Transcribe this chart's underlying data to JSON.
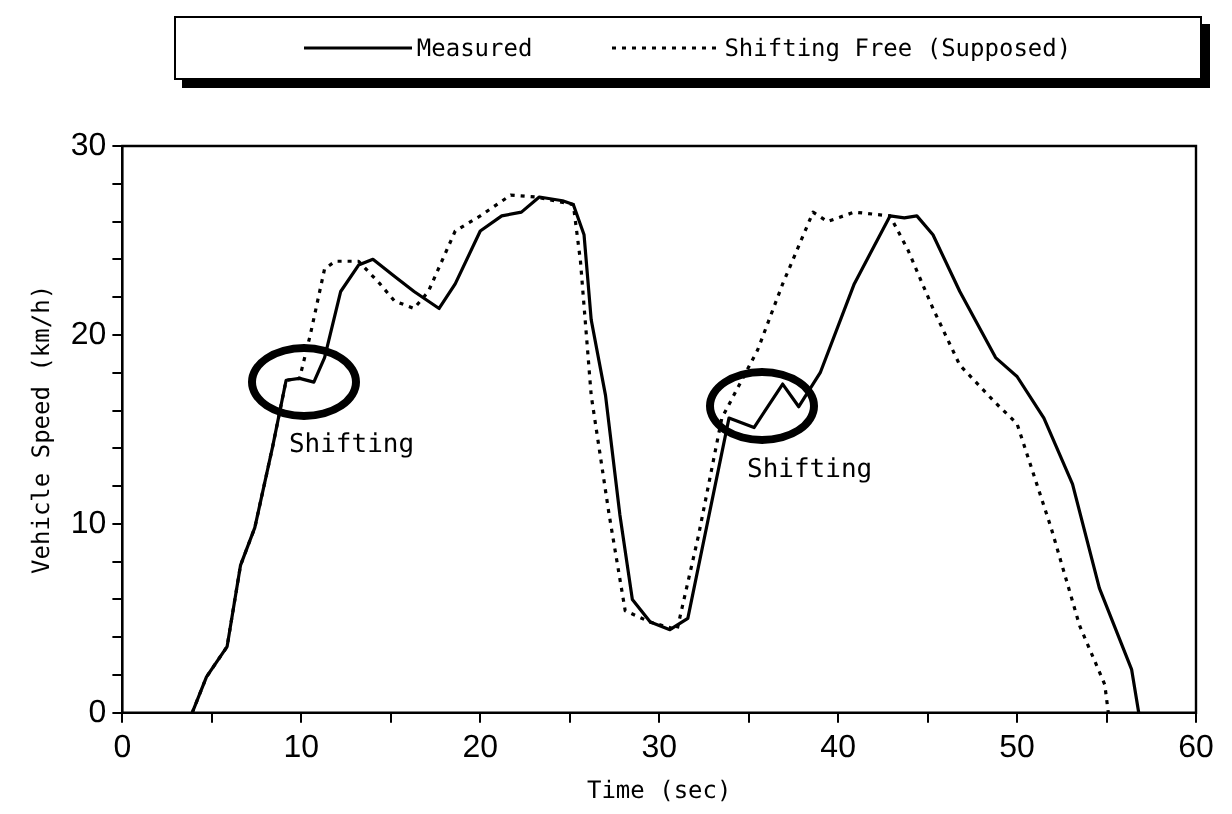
{
  "chart_data": {
    "type": "line",
    "xlabel": "Time (sec)",
    "ylabel": "Vehicle Speed (km/h)",
    "xlim": [
      0,
      60
    ],
    "xticks": [
      0,
      {
        "value": 5,
        "label": null
      },
      10,
      {
        "value": 15,
        "label": null
      },
      20,
      {
        "value": 25,
        "label": null
      },
      30,
      {
        "value": 35,
        "label": null
      },
      40,
      {
        "value": 45,
        "label": null
      },
      50,
      {
        "value": 55,
        "label": null
      },
      60
    ],
    "ylim": [
      0,
      30
    ],
    "yticks": [
      0,
      {
        "value": 2,
        "label": null
      },
      {
        "value": 4,
        "label": null
      },
      {
        "value": 6,
        "label": null
      },
      {
        "value": 8,
        "label": null
      },
      10,
      {
        "value": 12,
        "label": null
      },
      {
        "value": 14,
        "label": null
      },
      {
        "value": 16,
        "label": null
      },
      {
        "value": 18,
        "label": null
      },
      20,
      {
        "value": 22,
        "label": null
      },
      {
        "value": 24,
        "label": null
      },
      {
        "value": 26,
        "label": null
      },
      {
        "value": 28,
        "label": null
      },
      30
    ],
    "grid": false,
    "legend": "top",
    "marker": "none",
    "series": [
      {
        "name": "Measured",
        "color": "#000000",
        "line_style": "solid",
        "x": [
          3.9,
          4.7,
          5.85,
          6.6,
          7.4,
          8.4,
          9.15,
          9.9,
          10.7,
          11.3,
          12.2,
          13.2,
          14.0,
          15.2,
          16.3,
          17.7,
          18.6,
          20.0,
          21.2,
          22.3,
          23.3,
          24.6,
          25.2,
          25.8,
          26.2,
          27.0,
          27.8,
          28.5,
          29.5,
          30.6,
          31.6,
          33.9,
          35.3,
          36.9,
          37.8,
          39.0,
          40.9,
          42.9,
          43.7,
          44.4,
          45.3,
          46.8,
          48.8,
          50.0,
          51.5,
          53.1,
          54.6,
          56.4,
          56.8
        ],
        "values": [
          0,
          1.9,
          3.5,
          7.8,
          9.8,
          14.1,
          17.6,
          17.7,
          17.5,
          18.8,
          22.3,
          23.7,
          24.0,
          23.1,
          22.3,
          21.4,
          22.7,
          25.5,
          26.3,
          26.5,
          27.3,
          27.1,
          26.9,
          25.3,
          20.8,
          16.8,
          10.5,
          6.0,
          4.8,
          4.4,
          5.0,
          15.6,
          15.1,
          17.4,
          16.2,
          18.0,
          22.7,
          26.3,
          26.2,
          26.3,
          25.3,
          22.3,
          18.8,
          17.8,
          15.6,
          12.1,
          6.6,
          2.3,
          0
        ]
      },
      {
        "name": "Shifting Free (Supposed)",
        "color": "#000000",
        "line_style": "dotted",
        "x": [
          3.9,
          4.7,
          5.85,
          6.6,
          7.4,
          8.4,
          9.15,
          9.9,
          10.5,
          11.3,
          11.9,
          13.2,
          14.4,
          15.2,
          16.3,
          17.1,
          18.6,
          20.0,
          21.7,
          23.1,
          25.2,
          25.6,
          26.2,
          27.2,
          28.1,
          29.5,
          31.0,
          32.2,
          33.5,
          35.5,
          36.9,
          38.6,
          39.4,
          40.9,
          42.9,
          43.9,
          45.3,
          46.8,
          48.8,
          50.0,
          51.9,
          53.5,
          54.9,
          55.1
        ],
        "values": [
          0,
          1.9,
          3.5,
          7.8,
          9.8,
          14.1,
          17.6,
          17.7,
          20.0,
          23.5,
          23.9,
          23.9,
          22.7,
          21.8,
          21.4,
          22.3,
          25.5,
          26.3,
          27.4,
          27.3,
          26.9,
          23.9,
          16.8,
          10.5,
          5.4,
          4.8,
          4.4,
          9.4,
          15.6,
          19.2,
          22.7,
          26.5,
          26.0,
          26.5,
          26.3,
          24.5,
          21.4,
          18.4,
          16.4,
          15.3,
          9.8,
          4.6,
          1.5,
          0
        ]
      }
    ],
    "annotations": [
      {
        "text": "Shifting",
        "x": 10.2,
        "y": 17.6
      },
      {
        "text": "Shifting",
        "x": 35.8,
        "y": 16.3
      }
    ]
  }
}
